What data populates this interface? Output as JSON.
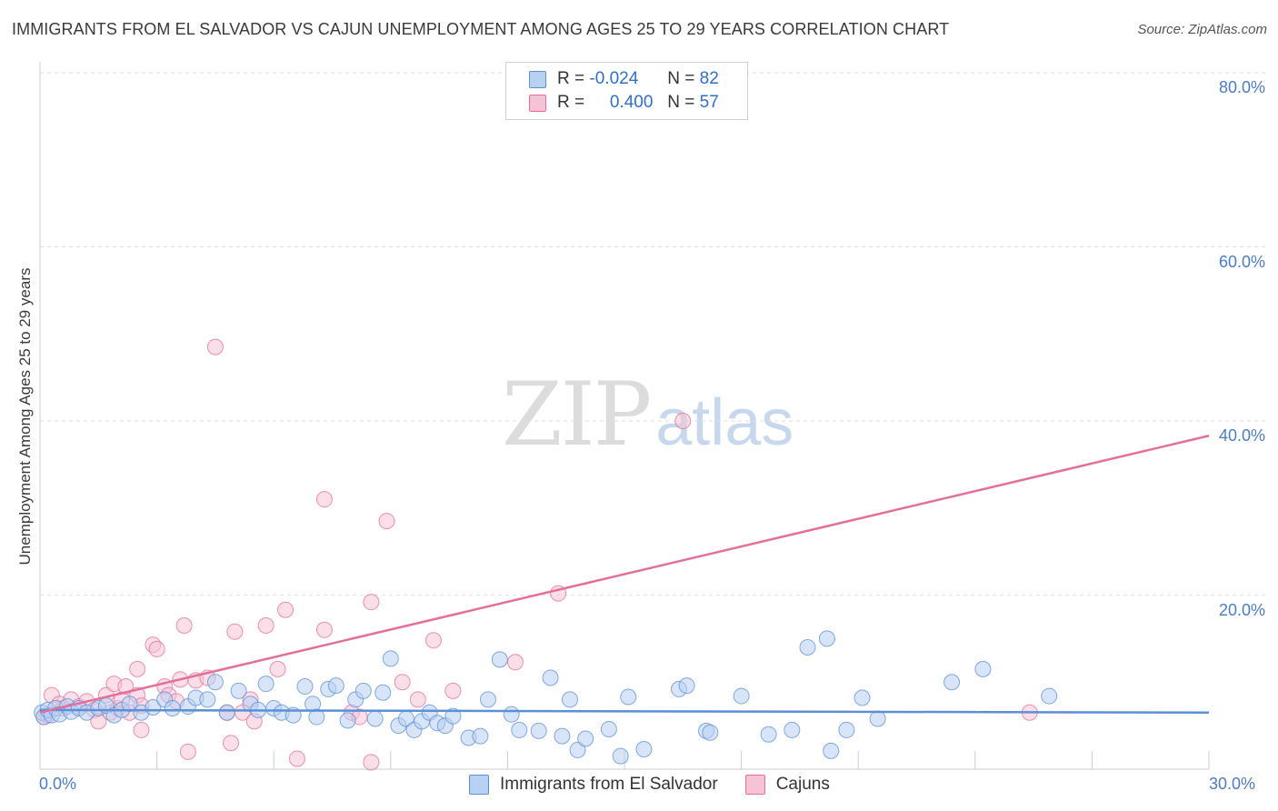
{
  "title": "IMMIGRANTS FROM EL SALVADOR VS CAJUN UNEMPLOYMENT AMONG AGES 25 TO 29 YEARS CORRELATION CHART",
  "source": "Source: ZipAtlas.com",
  "watermark": {
    "zip": "ZIP",
    "atlas": "atlas"
  },
  "legend": {
    "r_label": "R =",
    "n_label": "N =",
    "rows": [
      {
        "r": "-0.024",
        "n": "82"
      },
      {
        "r": "0.400",
        "n": "57"
      }
    ]
  },
  "chart_data": {
    "type": "scatter",
    "title": "IMMIGRANTS FROM EL SALVADOR VS CAJUN UNEMPLOYMENT AMONG AGES 25 TO 29 YEARS CORRELATION CHART",
    "xlabel": "",
    "ylabel": "Unemployment Among Ages 25 to 29 years",
    "xlim": [
      0,
      30
    ],
    "ylim": [
      0,
      80
    ],
    "x_ticks": [
      "0.0%",
      "30.0%"
    ],
    "y_ticks": [
      {
        "value": 20,
        "label": "20.0%"
      },
      {
        "value": 40,
        "label": "40.0%"
      },
      {
        "value": 60,
        "label": "60.0%"
      },
      {
        "value": 80,
        "label": "80.0%"
      }
    ],
    "grid": true,
    "series": [
      {
        "name": "Immigrants from El Salvador",
        "color": "#5b8fd6",
        "fill": "#b8d0f2",
        "trend": {
          "x0": 0,
          "y0": 6.8,
          "x1": 30,
          "y1": 6.5
        },
        "points": [
          [
            0.05,
            6.5
          ],
          [
            0.1,
            6.0
          ],
          [
            0.2,
            6.8
          ],
          [
            0.3,
            6.2
          ],
          [
            0.4,
            7.0
          ],
          [
            0.5,
            6.3
          ],
          [
            0.7,
            7.2
          ],
          [
            0.8,
            6.6
          ],
          [
            1.0,
            7.0
          ],
          [
            1.2,
            6.5
          ],
          [
            1.5,
            7.0
          ],
          [
            1.7,
            7.3
          ],
          [
            1.9,
            6.2
          ],
          [
            2.1,
            6.8
          ],
          [
            2.3,
            7.5
          ],
          [
            2.6,
            6.5
          ],
          [
            2.9,
            7.1
          ],
          [
            3.2,
            8.0
          ],
          [
            3.4,
            7.0
          ],
          [
            3.8,
            7.2
          ],
          [
            4.0,
            8.2
          ],
          [
            4.3,
            8.0
          ],
          [
            4.5,
            10.0
          ],
          [
            4.8,
            6.5
          ],
          [
            5.1,
            9.0
          ],
          [
            5.4,
            7.5
          ],
          [
            5.6,
            6.8
          ],
          [
            5.8,
            9.8
          ],
          [
            6.0,
            7.0
          ],
          [
            6.2,
            6.5
          ],
          [
            6.5,
            6.2
          ],
          [
            6.8,
            9.5
          ],
          [
            7.0,
            7.5
          ],
          [
            7.1,
            6.0
          ],
          [
            7.4,
            9.2
          ],
          [
            7.6,
            9.6
          ],
          [
            7.9,
            5.6
          ],
          [
            8.1,
            8.0
          ],
          [
            8.3,
            9.0
          ],
          [
            8.6,
            5.8
          ],
          [
            8.8,
            8.8
          ],
          [
            9.0,
            12.7
          ],
          [
            9.2,
            5.0
          ],
          [
            9.4,
            5.8
          ],
          [
            9.6,
            4.5
          ],
          [
            9.8,
            5.5
          ],
          [
            10.0,
            6.5
          ],
          [
            10.2,
            5.3
          ],
          [
            10.4,
            5.0
          ],
          [
            10.6,
            6.1
          ],
          [
            11.0,
            3.6
          ],
          [
            11.3,
            3.8
          ],
          [
            11.5,
            8.0
          ],
          [
            11.8,
            12.6
          ],
          [
            12.1,
            6.3
          ],
          [
            12.3,
            4.5
          ],
          [
            12.8,
            4.4
          ],
          [
            13.1,
            10.5
          ],
          [
            13.4,
            3.8
          ],
          [
            13.6,
            8.0
          ],
          [
            13.8,
            2.2
          ],
          [
            14.0,
            3.5
          ],
          [
            14.6,
            4.6
          ],
          [
            14.9,
            1.5
          ],
          [
            15.1,
            8.3
          ],
          [
            15.5,
            2.3
          ],
          [
            16.4,
            9.2
          ],
          [
            16.6,
            9.6
          ],
          [
            17.1,
            4.4
          ],
          [
            17.2,
            4.2
          ],
          [
            18.0,
            8.4
          ],
          [
            18.7,
            4.0
          ],
          [
            19.3,
            4.5
          ],
          [
            19.7,
            14.0
          ],
          [
            20.2,
            15.0
          ],
          [
            20.3,
            2.1
          ],
          [
            20.7,
            4.5
          ],
          [
            21.1,
            8.2
          ],
          [
            21.5,
            5.8
          ],
          [
            23.4,
            10.0
          ],
          [
            24.2,
            11.5
          ],
          [
            25.9,
            8.4
          ]
        ]
      },
      {
        "name": "Cajuns",
        "color": "#e56f9b",
        "fill": "#f6c3d5",
        "trend": {
          "x0": 0,
          "y0": 6.5,
          "x1": 30,
          "y1": 38.3
        },
        "points": [
          [
            0.1,
            6.0
          ],
          [
            0.3,
            8.5
          ],
          [
            0.5,
            7.5
          ],
          [
            0.6,
            7.0
          ],
          [
            0.8,
            8.0
          ],
          [
            1.0,
            7.2
          ],
          [
            1.2,
            7.8
          ],
          [
            1.4,
            6.8
          ],
          [
            1.5,
            5.5
          ],
          [
            1.7,
            8.5
          ],
          [
            1.8,
            6.5
          ],
          [
            1.9,
            9.8
          ],
          [
            2.0,
            7.0
          ],
          [
            2.1,
            8.0
          ],
          [
            2.2,
            9.5
          ],
          [
            2.3,
            6.5
          ],
          [
            2.5,
            8.5
          ],
          [
            2.6,
            7.3
          ],
          [
            2.5,
            11.5
          ],
          [
            2.6,
            4.5
          ],
          [
            2.9,
            14.3
          ],
          [
            3.0,
            13.8
          ],
          [
            3.2,
            9.5
          ],
          [
            3.3,
            8.5
          ],
          [
            3.5,
            7.8
          ],
          [
            3.6,
            10.3
          ],
          [
            3.7,
            16.5
          ],
          [
            3.8,
            2.0
          ],
          [
            4.0,
            10.2
          ],
          [
            4.3,
            10.5
          ],
          [
            4.5,
            48.5
          ],
          [
            4.8,
            6.5
          ],
          [
            4.9,
            3.0
          ],
          [
            5.0,
            15.8
          ],
          [
            5.2,
            6.5
          ],
          [
            5.4,
            8.0
          ],
          [
            5.5,
            5.5
          ],
          [
            5.8,
            16.5
          ],
          [
            6.1,
            11.5
          ],
          [
            6.3,
            18.3
          ],
          [
            6.6,
            1.2
          ],
          [
            7.3,
            31.0
          ],
          [
            7.3,
            16.0
          ],
          [
            8.0,
            6.5
          ],
          [
            8.2,
            6.0
          ],
          [
            8.5,
            0.8
          ],
          [
            8.5,
            19.2
          ],
          [
            8.9,
            28.5
          ],
          [
            9.3,
            10.0
          ],
          [
            9.7,
            8.0
          ],
          [
            10.1,
            14.8
          ],
          [
            10.6,
            9.0
          ],
          [
            12.2,
            12.3
          ],
          [
            13.3,
            20.2
          ],
          [
            16.5,
            40.0
          ],
          [
            25.4,
            6.5
          ],
          [
            0.2,
            6.2
          ]
        ]
      }
    ]
  },
  "bottom_legend": [
    "Immigrants from El Salvador",
    "Cajuns"
  ]
}
